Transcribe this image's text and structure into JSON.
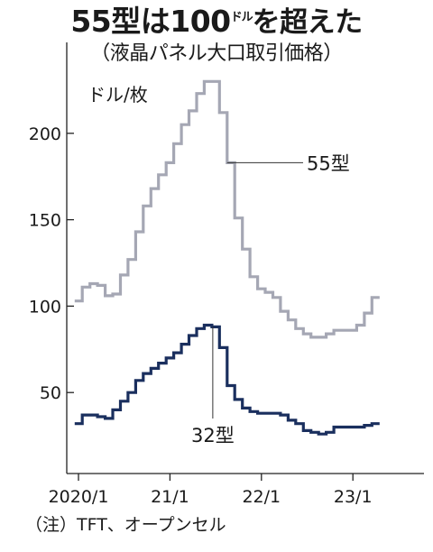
{
  "title_parts": {
    "a": "55型は100",
    "small": "ドル",
    "b": "を超えた"
  },
  "subtitle": "（液晶パネル大口取引価格）",
  "note": "（注）TFT、オープンセル",
  "chart_data": {
    "type": "line",
    "ylabel": "ドル/枚",
    "ylim": [
      0,
      240
    ],
    "yticks": [
      50,
      100,
      150,
      200
    ],
    "ytick_labels": [
      "50",
      "100",
      "150",
      "200"
    ],
    "xticks": [
      "2020/1",
      "21/1",
      "22/1",
      "23/1"
    ],
    "x": [
      "2020/1",
      "2020/2",
      "2020/3",
      "2020/4",
      "2020/5",
      "2020/6",
      "2020/7",
      "2020/8",
      "2020/9",
      "2020/10",
      "2020/11",
      "2020/12",
      "2021/1",
      "2021/2",
      "2021/3",
      "2021/4",
      "2021/5",
      "2021/6",
      "2021/7",
      "2021/8",
      "2021/9",
      "2021/10",
      "2021/11",
      "2021/12",
      "2022/1",
      "2022/2",
      "2022/3",
      "2022/4",
      "2022/5",
      "2022/6",
      "2022/7",
      "2022/8",
      "2022/9",
      "2022/10",
      "2022/11",
      "2022/12",
      "2023/1",
      "2023/2",
      "2023/3",
      "2023/4"
    ],
    "series": [
      {
        "name": "55型",
        "color": "#a5a7b4",
        "values": [
          103,
          111,
          113,
          112,
          106,
          107,
          118,
          127,
          143,
          158,
          168,
          176,
          183,
          194,
          205,
          213,
          223,
          230,
          230,
          212,
          183,
          151,
          133,
          117,
          110,
          108,
          105,
          97,
          92,
          87,
          84,
          82,
          82,
          84,
          86,
          86,
          86,
          89,
          96,
          105
        ]
      },
      {
        "name": "32型",
        "color": "#1a2f5e",
        "values": [
          32,
          37,
          37,
          36,
          35,
          40,
          45,
          50,
          57,
          61,
          64,
          67,
          70,
          73,
          78,
          83,
          87,
          89,
          88,
          76,
          54,
          46,
          41,
          39,
          38,
          38,
          38,
          37,
          34,
          32,
          28,
          27,
          26,
          27,
          30,
          30,
          30,
          30,
          31,
          32
        ]
      }
    ]
  }
}
